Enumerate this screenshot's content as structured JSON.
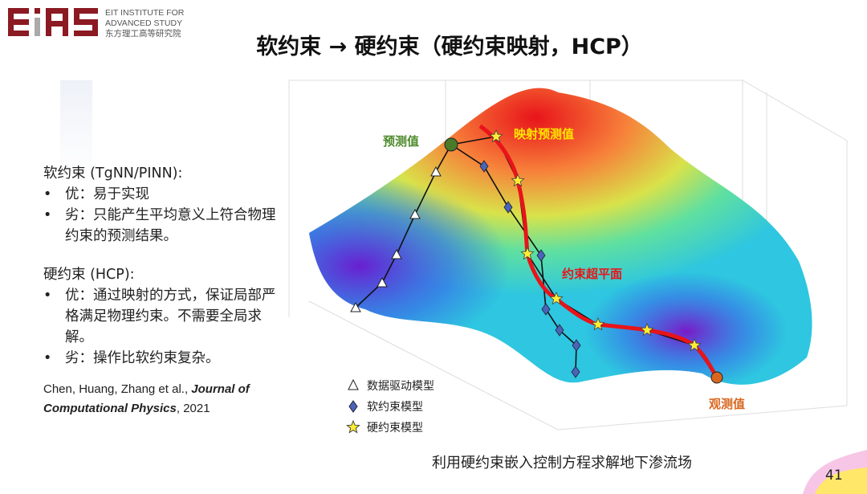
{
  "logo": {
    "mark": "EIAS",
    "line1": "EIT INSTITUTE FOR",
    "line2": "ADVANCED STUDY",
    "line3": "东方理工高等研究院",
    "color": "#8b1a22"
  },
  "title": "软约束 → 硬约束（硬约束映射，HCP）",
  "left": {
    "soft_heading": "软约束 (TgNN/PINN):",
    "soft_bullets": [
      "优：易于实现",
      "劣：只能产生平均意义上符合物理约束的预测结果。"
    ],
    "hard_heading": "硬约束 (HCP):",
    "hard_bullets": [
      "优：通过映射的方式，保证局部严格满足物理约束。不需要全局求解。",
      "劣：操作比软约束复杂。"
    ],
    "bullet_char": "•",
    "citation_authors": "Chen, Huang, Zhang et al., ",
    "citation_journal": "Journal of Computational Physics",
    "citation_year": ", 2021"
  },
  "figure": {
    "label_predicted": "预测值",
    "label_mapped": "映射预测值",
    "label_hyperplane": "约束超平面",
    "label_observed": "观测值",
    "legend": [
      {
        "marker": "triangle",
        "label": "数据驱动模型"
      },
      {
        "marker": "diamond",
        "label": "软约束模型"
      },
      {
        "marker": "star",
        "label": "硬约束模型"
      }
    ],
    "colors": {
      "predicted": "#4a8a2a",
      "mapped": "#ffe600",
      "hyperplane": "#e8141a",
      "observed": "#d9661e"
    }
  },
  "caption": "利用硬约束嵌入控制方程求解地下渗流场",
  "page_number": "41"
}
